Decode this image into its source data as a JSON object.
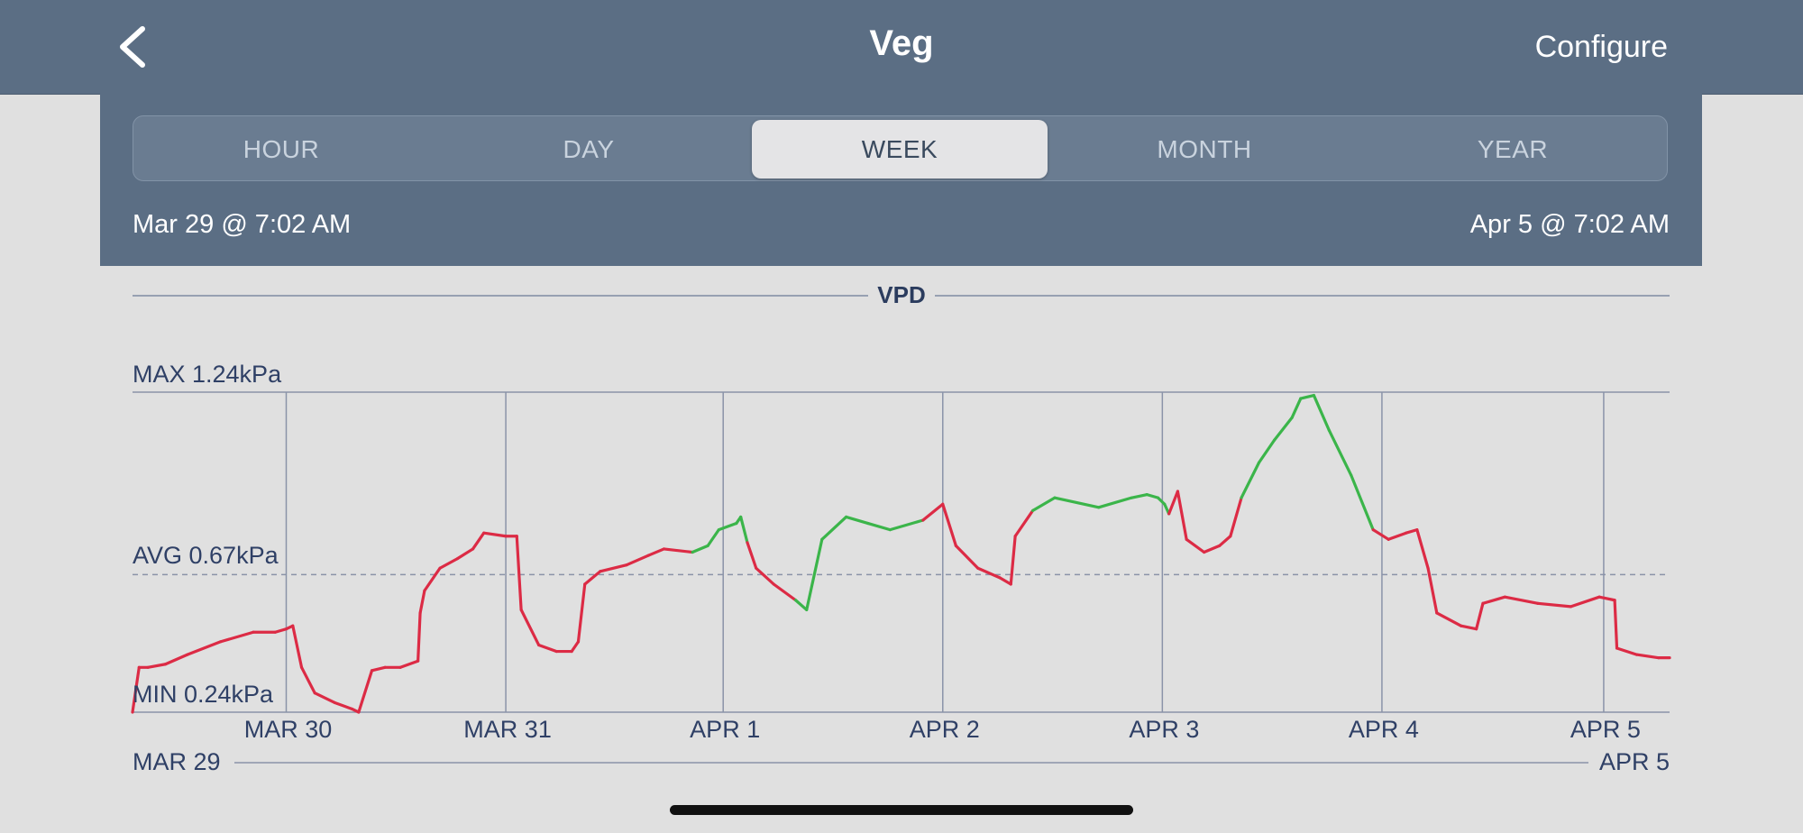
{
  "navbar": {
    "title": "Veg",
    "configure_label": "Configure",
    "back_icon": "chevron-left-icon"
  },
  "segments": [
    {
      "label": "HOUR",
      "active": false
    },
    {
      "label": "DAY",
      "active": false
    },
    {
      "label": "WEEK",
      "active": true
    },
    {
      "label": "MONTH",
      "active": false
    },
    {
      "label": "YEAR",
      "active": false
    }
  ],
  "range": {
    "start": "Mar 29 @ 7:02 AM",
    "end": "Apr 5 @ 7:02 AM"
  },
  "section_title": "VPD",
  "colors": {
    "navbar": "#5b6e84",
    "in_range": "#3bb54a",
    "out_of_range": "#dc2b45",
    "text_dark": "#2f4066"
  },
  "chart_data": {
    "type": "line",
    "title": "VPD",
    "unit": "kPa",
    "max_label": "MAX 1.24kPa",
    "avg_label": "AVG 0.67kPa",
    "min_label": "MIN 0.24kPa",
    "max": 1.24,
    "avg": 0.67,
    "min": 0.24,
    "ylim": [
      0.24,
      1.24
    ],
    "xlim": [
      0,
      7
    ],
    "day_ticks": [
      {
        "label": "MAR 30",
        "x": 0.7
      },
      {
        "label": "MAR 31",
        "x": 1.7
      },
      {
        "label": "APR 1",
        "x": 2.69
      },
      {
        "label": "APR 2",
        "x": 3.69
      },
      {
        "label": "APR 3",
        "x": 4.69
      },
      {
        "label": "APR 4",
        "x": 5.69
      },
      {
        "label": "APR 5",
        "x": 6.7
      }
    ],
    "range_start_label": "MAR 29",
    "range_end_label": "APR 5",
    "grid": true,
    "series": [
      {
        "values": [
          [
            0.0,
            0.24
          ],
          [
            0.03,
            0.38
          ],
          [
            0.07,
            0.38
          ],
          [
            0.15,
            0.39
          ],
          [
            0.25,
            0.42
          ],
          [
            0.4,
            0.46
          ],
          [
            0.55,
            0.49
          ],
          [
            0.65,
            0.49
          ],
          [
            0.7,
            0.5
          ],
          [
            0.73,
            0.51
          ],
          [
            0.77,
            0.38
          ],
          [
            0.83,
            0.3
          ],
          [
            0.92,
            0.27
          ],
          [
            1.0,
            0.25
          ],
          [
            1.03,
            0.24
          ],
          [
            1.09,
            0.37
          ],
          [
            1.15,
            0.38
          ],
          [
            1.22,
            0.38
          ],
          [
            1.3,
            0.4
          ],
          [
            1.31,
            0.55
          ],
          [
            1.33,
            0.62
          ],
          [
            1.4,
            0.69
          ],
          [
            1.48,
            0.72
          ],
          [
            1.55,
            0.75
          ],
          [
            1.6,
            0.8
          ],
          [
            1.7,
            0.79
          ],
          [
            1.75,
            0.79
          ],
          [
            1.77,
            0.56
          ],
          [
            1.85,
            0.45
          ],
          [
            1.93,
            0.43
          ],
          [
            2.0,
            0.43
          ],
          [
            2.03,
            0.46
          ],
          [
            2.06,
            0.64
          ],
          [
            2.13,
            0.68
          ],
          [
            2.25,
            0.7
          ],
          [
            2.35,
            0.73
          ],
          [
            2.42,
            0.75
          ],
          [
            2.55,
            0.74
          ],
          [
            2.62,
            0.76
          ],
          [
            2.67,
            0.81
          ],
          [
            2.75,
            0.83
          ],
          [
            2.77,
            0.85
          ],
          [
            2.8,
            0.77
          ],
          [
            2.84,
            0.69
          ],
          [
            2.92,
            0.64
          ],
          [
            3.02,
            0.59
          ],
          [
            3.07,
            0.56
          ],
          [
            3.14,
            0.78
          ],
          [
            3.25,
            0.85
          ],
          [
            3.35,
            0.83
          ],
          [
            3.45,
            0.81
          ],
          [
            3.6,
            0.84
          ],
          [
            3.69,
            0.89
          ],
          [
            3.75,
            0.76
          ],
          [
            3.85,
            0.69
          ],
          [
            3.95,
            0.66
          ],
          [
            4.0,
            0.64
          ],
          [
            4.02,
            0.79
          ],
          [
            4.1,
            0.87
          ],
          [
            4.2,
            0.91
          ],
          [
            4.4,
            0.88
          ],
          [
            4.55,
            0.91
          ],
          [
            4.62,
            0.92
          ],
          [
            4.67,
            0.91
          ],
          [
            4.7,
            0.89
          ],
          [
            4.72,
            0.86
          ],
          [
            4.76,
            0.93
          ],
          [
            4.8,
            0.78
          ],
          [
            4.88,
            0.74
          ],
          [
            4.95,
            0.76
          ],
          [
            5.0,
            0.79
          ],
          [
            5.05,
            0.91
          ],
          [
            5.13,
            1.02
          ],
          [
            5.2,
            1.09
          ],
          [
            5.28,
            1.16
          ],
          [
            5.32,
            1.22
          ],
          [
            5.38,
            1.23
          ],
          [
            5.45,
            1.12
          ],
          [
            5.55,
            0.98
          ],
          [
            5.65,
            0.81
          ],
          [
            5.72,
            0.78
          ],
          [
            5.8,
            0.8
          ],
          [
            5.85,
            0.81
          ],
          [
            5.9,
            0.69
          ],
          [
            5.94,
            0.55
          ],
          [
            6.05,
            0.51
          ],
          [
            6.12,
            0.5
          ],
          [
            6.15,
            0.58
          ],
          [
            6.25,
            0.6
          ],
          [
            6.4,
            0.58
          ],
          [
            6.55,
            0.57
          ],
          [
            6.68,
            0.6
          ],
          [
            6.75,
            0.59
          ],
          [
            6.76,
            0.44
          ],
          [
            6.85,
            0.42
          ],
          [
            6.95,
            0.41
          ],
          [
            7.0,
            0.41
          ]
        ]
      }
    ],
    "in_range_segments": [
      [
        2.55,
        2.8
      ],
      [
        2.97,
        3.62
      ],
      [
        4.07,
        4.72
      ],
      [
        5.03,
        5.65
      ]
    ]
  }
}
